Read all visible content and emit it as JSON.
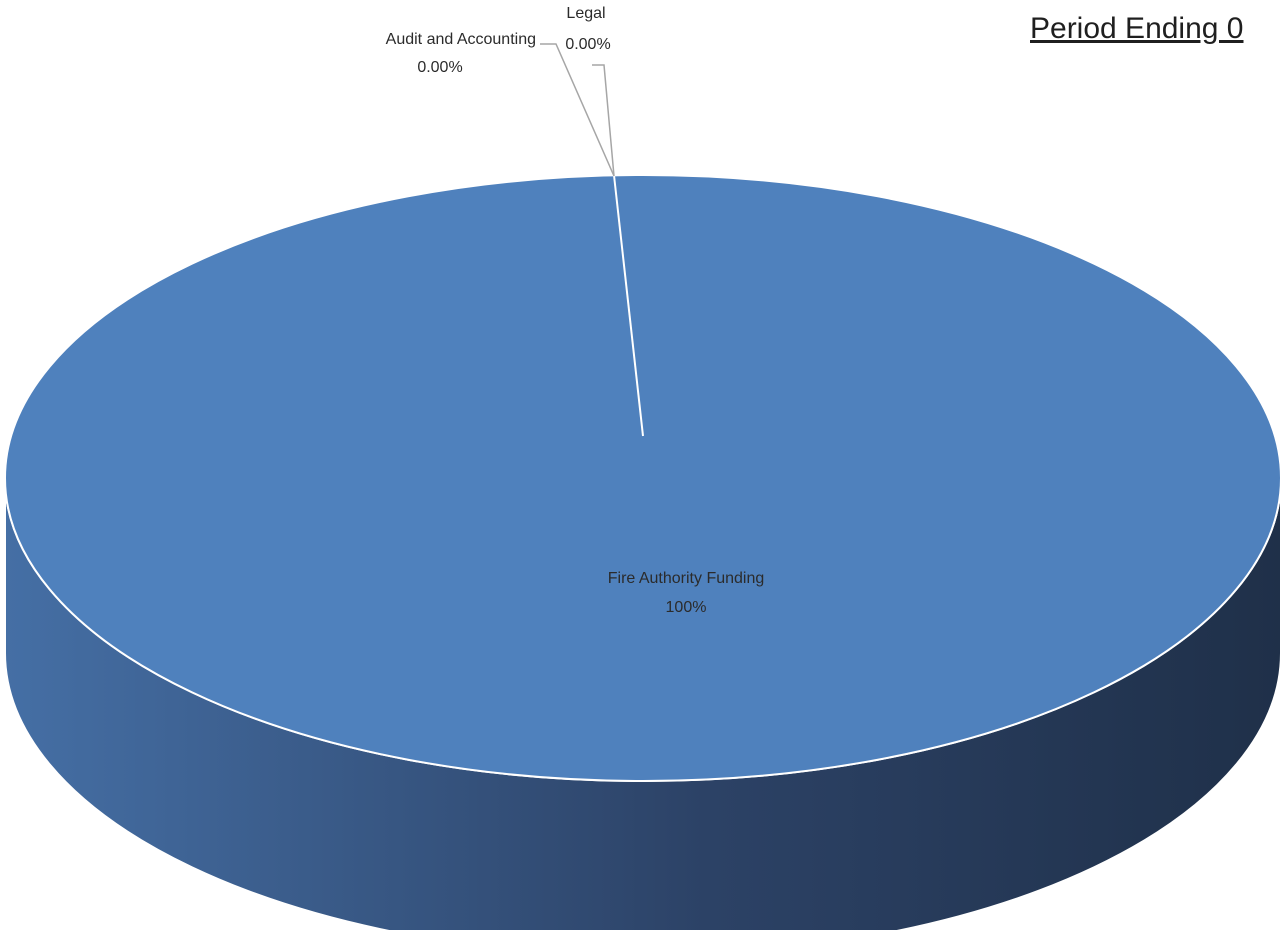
{
  "chart_data": {
    "type": "pie",
    "title": "Period Ending 0",
    "three_d": true,
    "slices": [
      {
        "label": "Fire Authority Funding",
        "value_label": "100%",
        "percent": 100,
        "color": "#4f81bd"
      },
      {
        "label": "Audit and Accounting",
        "value_label": "0.00%",
        "percent": 0
      },
      {
        "label": "Legal",
        "value_label": "0.00%",
        "percent": 0
      }
    ],
    "colors": {
      "top": "#4f81bd",
      "side_light": "#456fa5",
      "side_dark": "#1f3049",
      "outline": "#ffffff",
      "leader": "#a6a6a6"
    }
  }
}
